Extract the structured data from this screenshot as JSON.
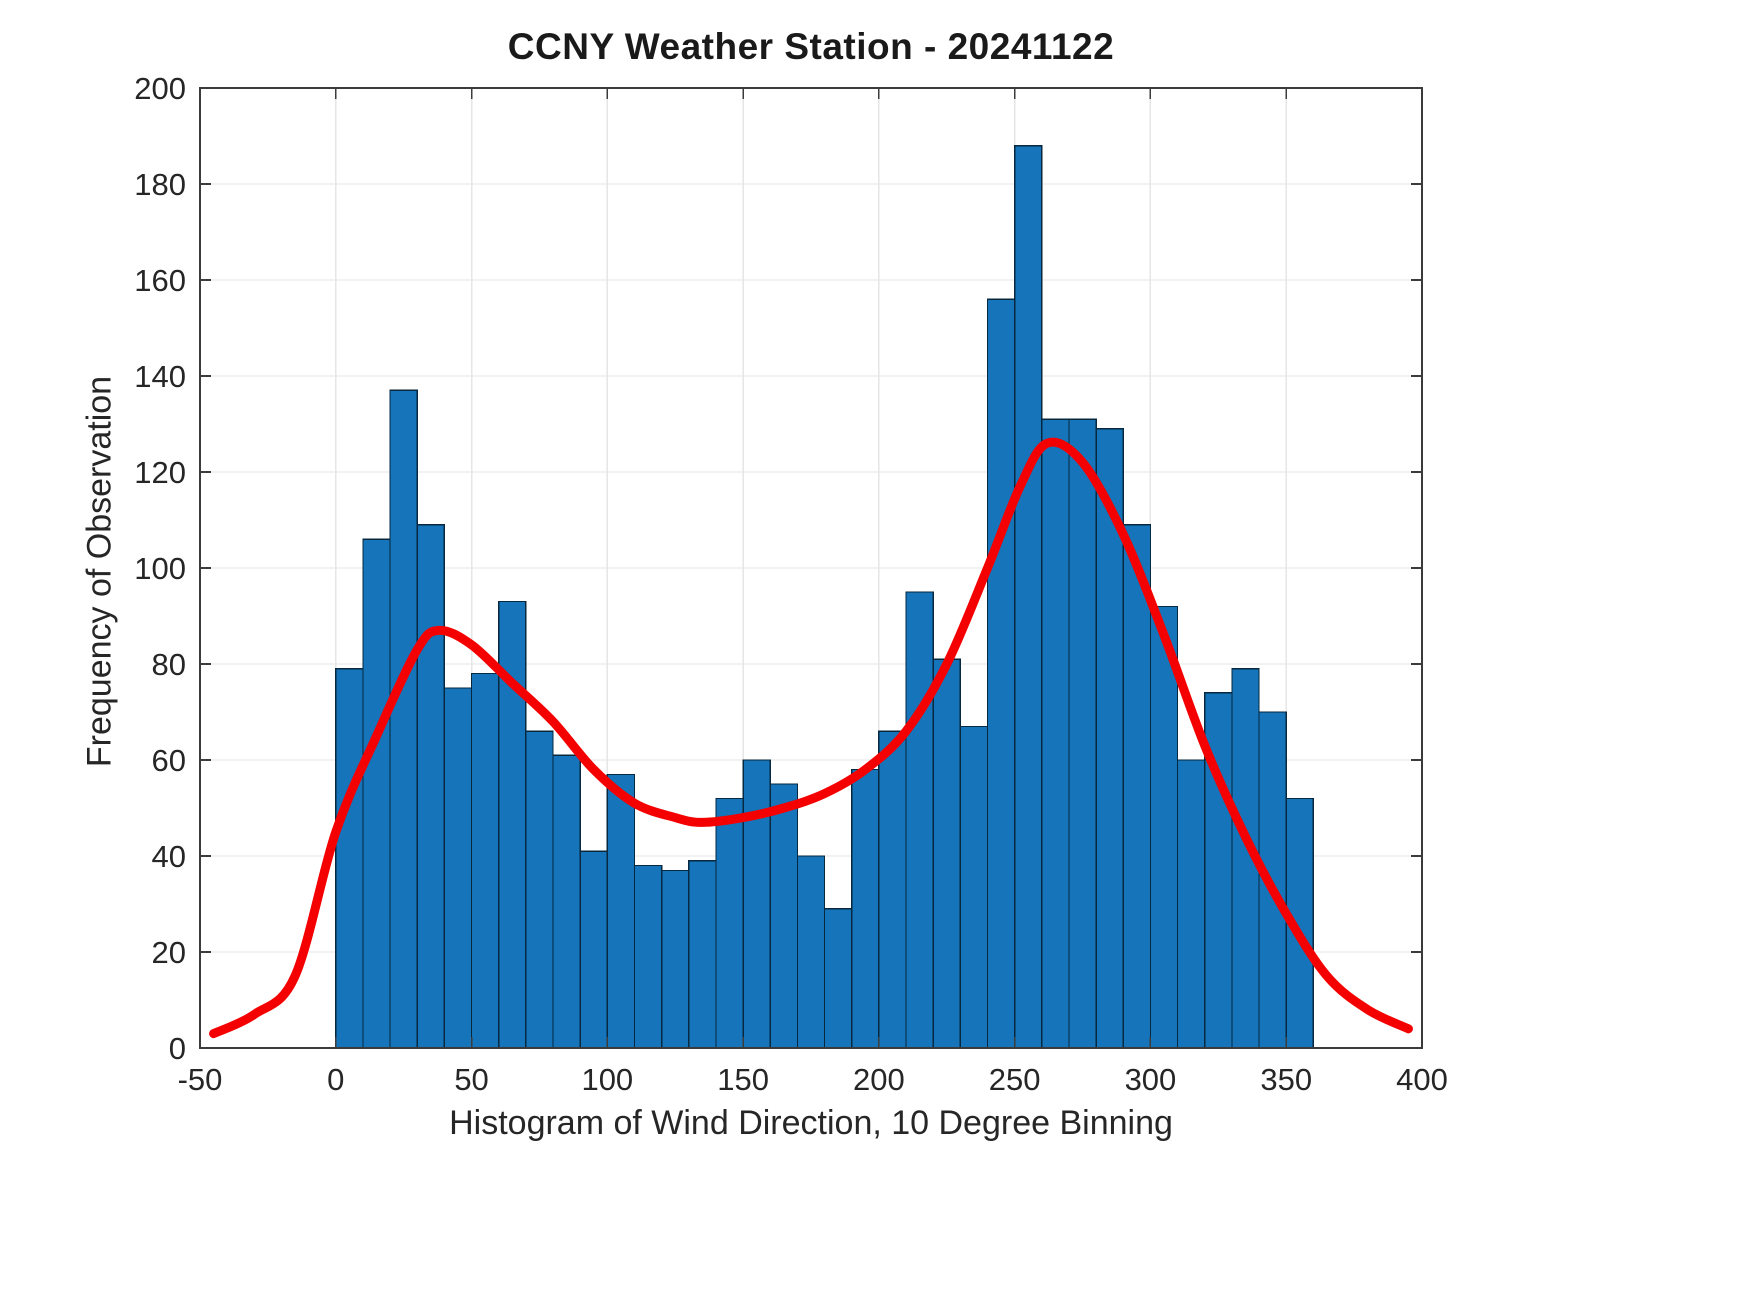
{
  "figure": {
    "background": "#ffffff"
  },
  "chart_data": {
    "type": "bar",
    "subtype": "histogram-with-fit",
    "title": "CCNY Weather Station - 20241122",
    "xlabel": "Histogram of Wind Direction, 10 Degree Binning",
    "ylabel": "Frequency of Observation",
    "xlim": [
      -50,
      400
    ],
    "ylim": [
      0,
      200
    ],
    "x_ticks": [
      -50,
      0,
      50,
      100,
      150,
      200,
      250,
      300,
      350,
      400
    ],
    "y_ticks": [
      0,
      20,
      40,
      60,
      80,
      100,
      120,
      140,
      160,
      180,
      200
    ],
    "grid": true,
    "legend_position": "none",
    "bin_start": 0,
    "bin_width": 10,
    "counts": [
      79,
      106,
      137,
      109,
      75,
      78,
      93,
      66,
      61,
      41,
      57,
      38,
      37,
      39,
      52,
      60,
      55,
      40,
      29,
      58,
      66,
      95,
      81,
      67,
      156,
      188,
      131,
      131,
      129,
      109,
      92,
      60,
      74,
      79,
      70,
      52
    ],
    "fit_curve": {
      "x": [
        -45,
        -30,
        -15,
        0,
        15,
        30,
        38,
        50,
        65,
        80,
        95,
        110,
        125,
        135,
        150,
        165,
        180,
        195,
        210,
        225,
        240,
        252,
        262,
        275,
        290,
        305,
        320,
        335,
        350,
        365,
        380,
        395
      ],
      "y": [
        3,
        7,
        15,
        45,
        65,
        83,
        87,
        84,
        76,
        68,
        58,
        51,
        48,
        47,
        48,
        50,
        53,
        58,
        66,
        80,
        100,
        117,
        126,
        122,
        107,
        86,
        63,
        44,
        28,
        15,
        8,
        4
      ]
    },
    "colors": {
      "bar_fill": "#1674bb",
      "bar_edge": "#07283f",
      "curve": "#f40000",
      "grid_line": "#e6e6e6",
      "axis_box": "#3b3b3b",
      "tick_text": "#262626"
    }
  }
}
